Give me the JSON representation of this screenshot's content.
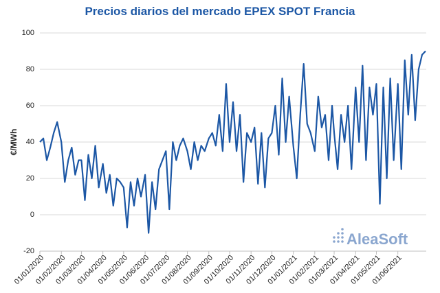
{
  "chart_data": {
    "type": "line",
    "title": "Precios diarios del mercado EPEX SPOT Francia",
    "y_label": "€/MWh",
    "watermark": "AleaSoft",
    "color": "#1c57a5",
    "grid": true,
    "ylim": [
      -20,
      100
    ],
    "yticks": [
      -20,
      0,
      20,
      40,
      60,
      80,
      100
    ],
    "xlim": [
      "01/01/2020",
      "12/07/2021"
    ],
    "xticks": [
      "01/01/2020",
      "01/02/2020",
      "01/03/2020",
      "01/04/2020",
      "01/05/2020",
      "01/06/2020",
      "01/07/2020",
      "01/08/2020",
      "01/09/2020",
      "01/10/2020",
      "01/11/2020",
      "01/12/2020",
      "01/01/2021",
      "01/02/2021",
      "01/03/2021",
      "01/04/2021",
      "01/05/2021",
      "01/06/2021"
    ],
    "x": [
      "01/01/2020",
      "06/01/2020",
      "11/01/2020",
      "16/01/2020",
      "21/01/2020",
      "26/01/2020",
      "01/02/2020",
      "06/02/2020",
      "11/02/2020",
      "16/02/2020",
      "21/02/2020",
      "26/02/2020",
      "01/03/2020",
      "06/03/2020",
      "11/03/2020",
      "16/03/2020",
      "21/03/2020",
      "26/03/2020",
      "01/04/2020",
      "06/04/2020",
      "11/04/2020",
      "16/04/2020",
      "21/04/2020",
      "26/04/2020",
      "01/05/2020",
      "06/05/2020",
      "11/05/2020",
      "16/05/2020",
      "21/05/2020",
      "26/05/2020",
      "01/06/2020",
      "06/06/2020",
      "11/06/2020",
      "16/06/2020",
      "21/06/2020",
      "26/06/2020",
      "01/07/2020",
      "06/07/2020",
      "11/07/2020",
      "16/07/2020",
      "21/07/2020",
      "26/07/2020",
      "01/08/2020",
      "06/08/2020",
      "11/08/2020",
      "16/08/2020",
      "21/08/2020",
      "26/08/2020",
      "01/09/2020",
      "06/09/2020",
      "11/09/2020",
      "16/09/2020",
      "21/09/2020",
      "26/09/2020",
      "01/10/2020",
      "06/10/2020",
      "11/10/2020",
      "16/10/2020",
      "21/10/2020",
      "26/10/2020",
      "01/11/2020",
      "06/11/2020",
      "11/11/2020",
      "16/11/2020",
      "21/11/2020",
      "26/11/2020",
      "01/12/2020",
      "06/12/2020",
      "11/12/2020",
      "16/12/2020",
      "21/12/2020",
      "26/12/2020",
      "01/01/2021",
      "06/01/2021",
      "11/01/2021",
      "16/01/2021",
      "21/01/2021",
      "26/01/2021",
      "01/02/2021",
      "06/02/2021",
      "11/02/2021",
      "16/02/2021",
      "21/02/2021",
      "26/02/2021",
      "01/03/2021",
      "06/03/2021",
      "11/03/2021",
      "16/03/2021",
      "21/03/2021",
      "26/03/2021",
      "01/04/2021",
      "06/04/2021",
      "11/04/2021",
      "16/04/2021",
      "21/04/2021",
      "26/04/2021",
      "01/05/2021",
      "06/05/2021",
      "11/05/2021",
      "16/05/2021",
      "21/05/2021",
      "26/05/2021",
      "01/06/2021",
      "06/06/2021",
      "11/06/2021",
      "16/06/2021",
      "21/06/2021",
      "26/06/2021",
      "01/07/2021",
      "06/07/2021",
      "11/07/2021"
    ],
    "values": [
      40,
      42,
      30,
      37,
      45,
      51,
      40,
      18,
      30,
      37,
      22,
      30,
      30,
      8,
      33,
      20,
      38,
      15,
      28,
      12,
      22,
      5,
      20,
      18,
      15,
      -7,
      18,
      5,
      20,
      10,
      22,
      -10,
      18,
      3,
      25,
      30,
      35,
      3,
      40,
      30,
      38,
      42,
      35,
      25,
      40,
      30,
      38,
      35,
      42,
      45,
      38,
      55,
      35,
      72,
      40,
      62,
      35,
      55,
      18,
      45,
      40,
      48,
      17,
      45,
      15,
      42,
      45,
      60,
      33,
      75,
      40,
      65,
      38,
      20,
      55,
      83,
      50,
      45,
      35,
      65,
      48,
      55,
      30,
      60,
      45,
      25,
      55,
      40,
      60,
      25,
      70,
      40,
      82,
      30,
      70,
      55,
      72,
      6,
      70,
      20,
      75,
      30,
      72,
      25,
      85,
      55,
      88,
      52,
      80,
      88,
      90
    ]
  }
}
